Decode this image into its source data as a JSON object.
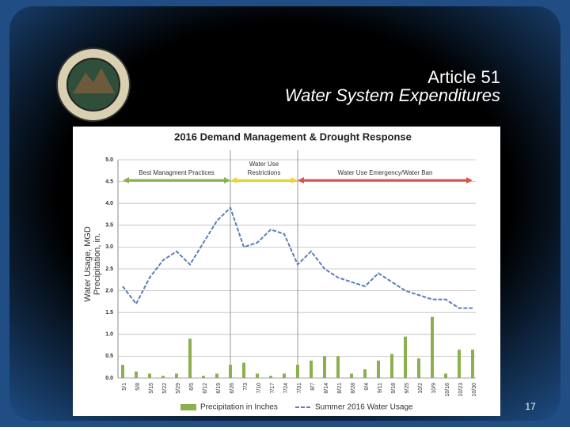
{
  "slide": {
    "title": "Article 51",
    "subtitle": "Water System Expenditures",
    "page_number": "17"
  },
  "chart_data": {
    "type": "combo",
    "title": "2016 Demand Management & Drought Response",
    "y_label": [
      "Water Usage, MGD",
      "Precipitation, in."
    ],
    "categories": [
      "5/1",
      "5/8",
      "5/15",
      "5/22",
      "5/29",
      "6/5",
      "6/12",
      "6/19",
      "6/26",
      "7/3",
      "7/10",
      "7/17",
      "7/24",
      "7/31",
      "8/7",
      "8/14",
      "8/21",
      "8/28",
      "9/4",
      "9/11",
      "9/18",
      "9/25",
      "10/2",
      "10/9",
      "10/16",
      "10/23",
      "10/30"
    ],
    "series": [
      {
        "name": "Precipitation in Inches",
        "type": "bar",
        "color": "#8db04f",
        "values": [
          0.3,
          0.15,
          0.1,
          0.05,
          0.1,
          0.9,
          0.05,
          0.1,
          0.3,
          0.35,
          0.1,
          0.05,
          0.1,
          0.3,
          0.4,
          0.5,
          0.5,
          0.1,
          0.2,
          0.4,
          0.55,
          0.95,
          0.45,
          1.4,
          0.1,
          0.65,
          0.65
        ]
      },
      {
        "name": "Summer 2016 Water Usage",
        "type": "line",
        "color": "#5b7fb5",
        "values": [
          2.1,
          1.7,
          2.3,
          2.7,
          2.9,
          2.6,
          3.1,
          3.6,
          3.9,
          3.0,
          3.1,
          3.4,
          3.3,
          2.6,
          2.9,
          2.5,
          2.3,
          2.2,
          2.1,
          2.4,
          2.2,
          2.0,
          1.9,
          1.8,
          1.8,
          1.6,
          1.6
        ]
      }
    ],
    "phases": [
      {
        "label": [
          "Best Managment Practices"
        ],
        "from": "5/1",
        "to": "6/26",
        "color": "#8db04f"
      },
      {
        "label": [
          "Water Use",
          "Restrictions"
        ],
        "from": "6/26",
        "to": "7/31",
        "color": "#e8d83a"
      },
      {
        "label": [
          "Water Use Emergency/Water Ban"
        ],
        "from": "7/31",
        "to": "10/30",
        "color": "#d9534f"
      }
    ],
    "ylim": [
      0,
      5
    ],
    "yticks": [
      {
        "value": 0,
        "label": "0.0"
      },
      {
        "value": 0.5,
        "label": "0.5"
      },
      {
        "value": 1,
        "label": "1.0"
      },
      {
        "value": 1.5,
        "label": "1.5"
      },
      {
        "value": 2,
        "label": "2.0"
      },
      {
        "value": 2.5,
        "label": "2.5"
      },
      {
        "value": 3,
        "label": "3.0"
      },
      {
        "value": 3.5,
        "label": "3.5"
      },
      {
        "value": 4,
        "label": "4.0"
      },
      {
        "value": 4.5,
        "label": "4.5"
      },
      {
        "value": 5,
        "label": "5.0"
      }
    ],
    "grid": true
  }
}
